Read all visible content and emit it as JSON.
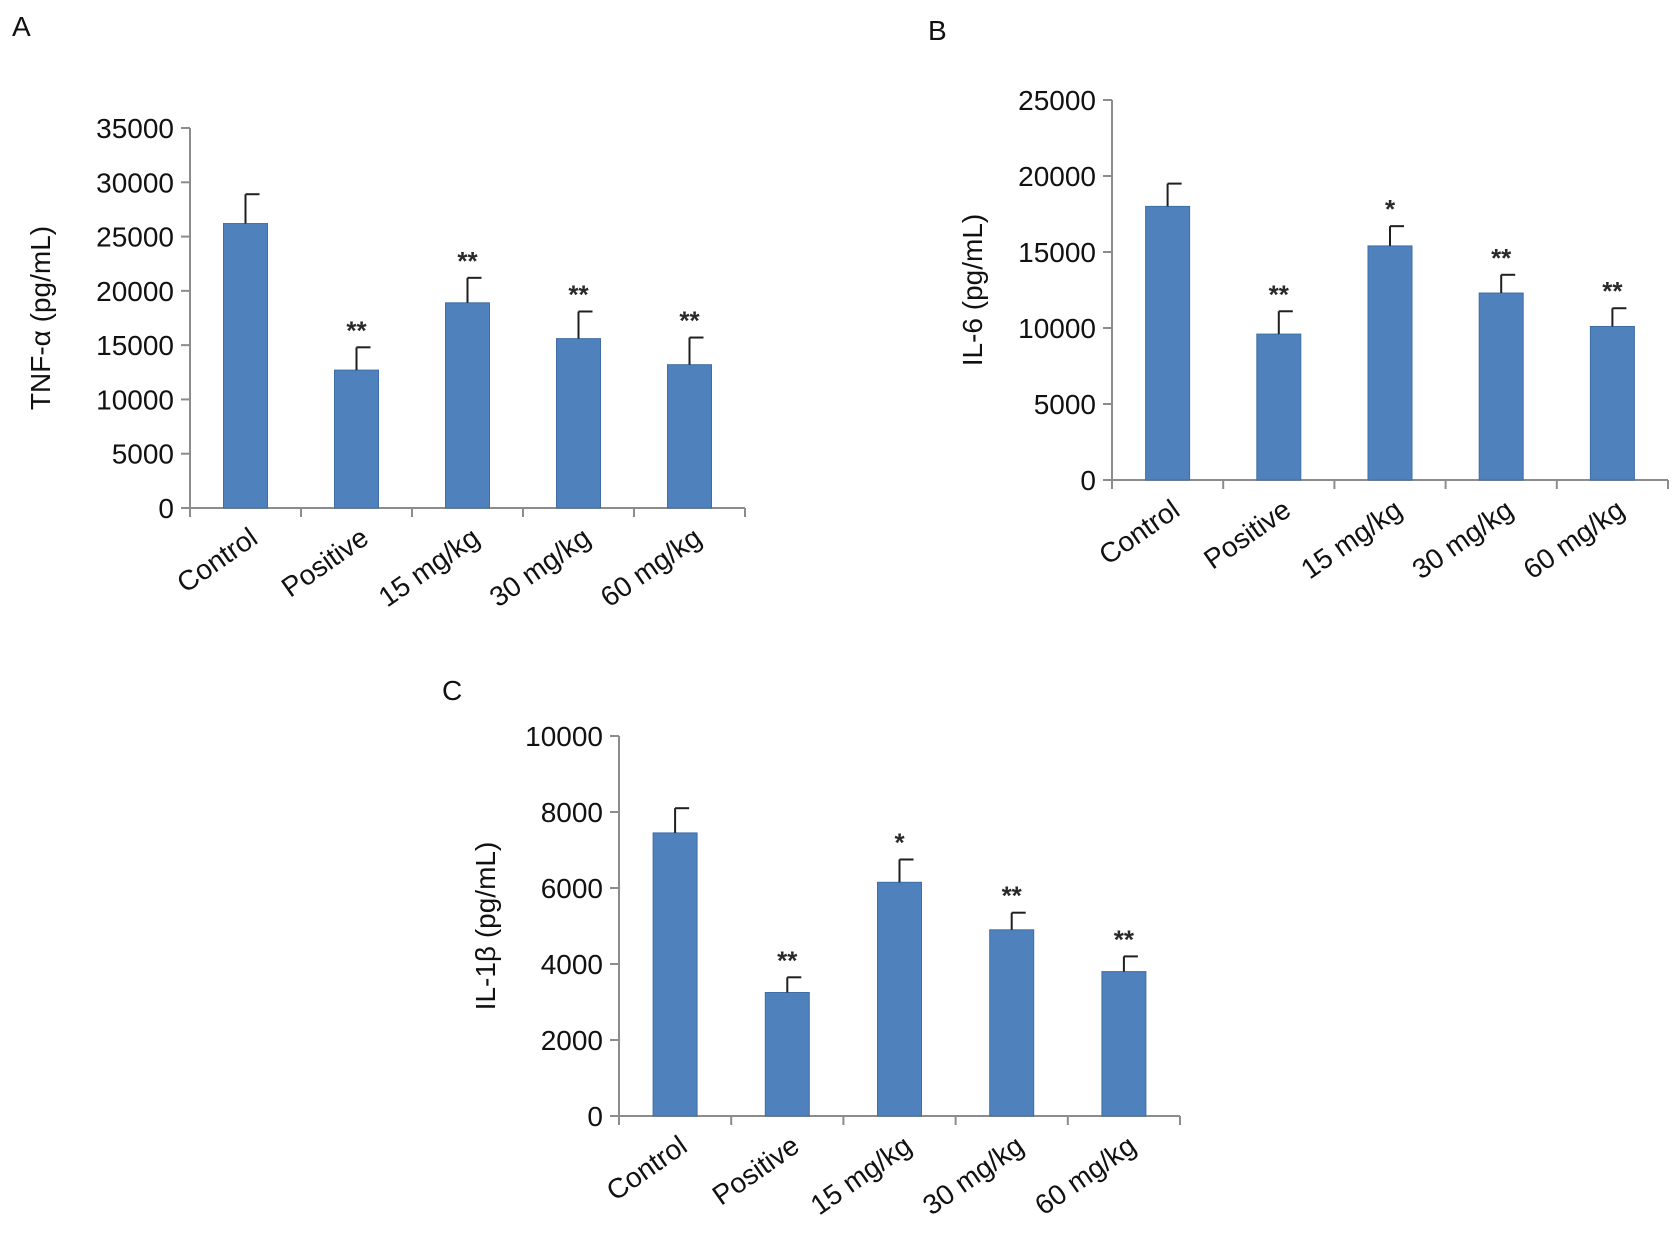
{
  "colors": {
    "bar": "#4f81bd",
    "bar_edge": "#3f6ea6",
    "axis": "#8c8c8c",
    "error_bar": "#1f1f1f",
    "text": "#111111"
  },
  "chart_data": [
    {
      "panel": "A",
      "type": "bar",
      "title": "",
      "xlabel": "",
      "ylabel": "TNF-α (pg/mL)",
      "categories": [
        "Control",
        "Positive",
        "15 mg/kg",
        "30 mg/kg",
        "60 mg/kg"
      ],
      "values": [
        26200,
        12700,
        18900,
        15600,
        13200
      ],
      "errors": [
        2700,
        2100,
        2300,
        2500,
        2500
      ],
      "significance": [
        "",
        "**",
        "**",
        "**",
        "**"
      ],
      "ylim": [
        0,
        35000
      ],
      "yticks": [
        0,
        5000,
        10000,
        15000,
        20000,
        25000,
        30000,
        35000
      ],
      "grid": false,
      "legend": "none"
    },
    {
      "panel": "B",
      "type": "bar",
      "title": "",
      "xlabel": "",
      "ylabel": "IL-6 (pg/mL)",
      "categories": [
        "Control",
        "Positive",
        "15 mg/kg",
        "30 mg/kg",
        "60 mg/kg"
      ],
      "values": [
        18000,
        9600,
        15400,
        12300,
        10100
      ],
      "errors": [
        1500,
        1500,
        1300,
        1200,
        1200
      ],
      "significance": [
        "",
        "**",
        "*",
        "**",
        "**"
      ],
      "ylim": [
        0,
        25000
      ],
      "yticks": [
        0,
        5000,
        10000,
        15000,
        20000,
        25000
      ],
      "grid": false,
      "legend": "none"
    },
    {
      "panel": "C",
      "type": "bar",
      "title": "",
      "xlabel": "",
      "ylabel": "IL-1β (pg/mL)",
      "categories": [
        "Control",
        "Positive",
        "15 mg/kg",
        "30 mg/kg",
        "60 mg/kg"
      ],
      "values": [
        7450,
        3250,
        6150,
        4900,
        3800
      ],
      "errors": [
        650,
        400,
        600,
        450,
        400
      ],
      "significance": [
        "",
        "**",
        "*",
        "**",
        "**"
      ],
      "ylim": [
        0,
        10000
      ],
      "yticks": [
        0,
        2000,
        4000,
        6000,
        8000,
        10000
      ],
      "grid": false,
      "legend": "none"
    }
  ]
}
